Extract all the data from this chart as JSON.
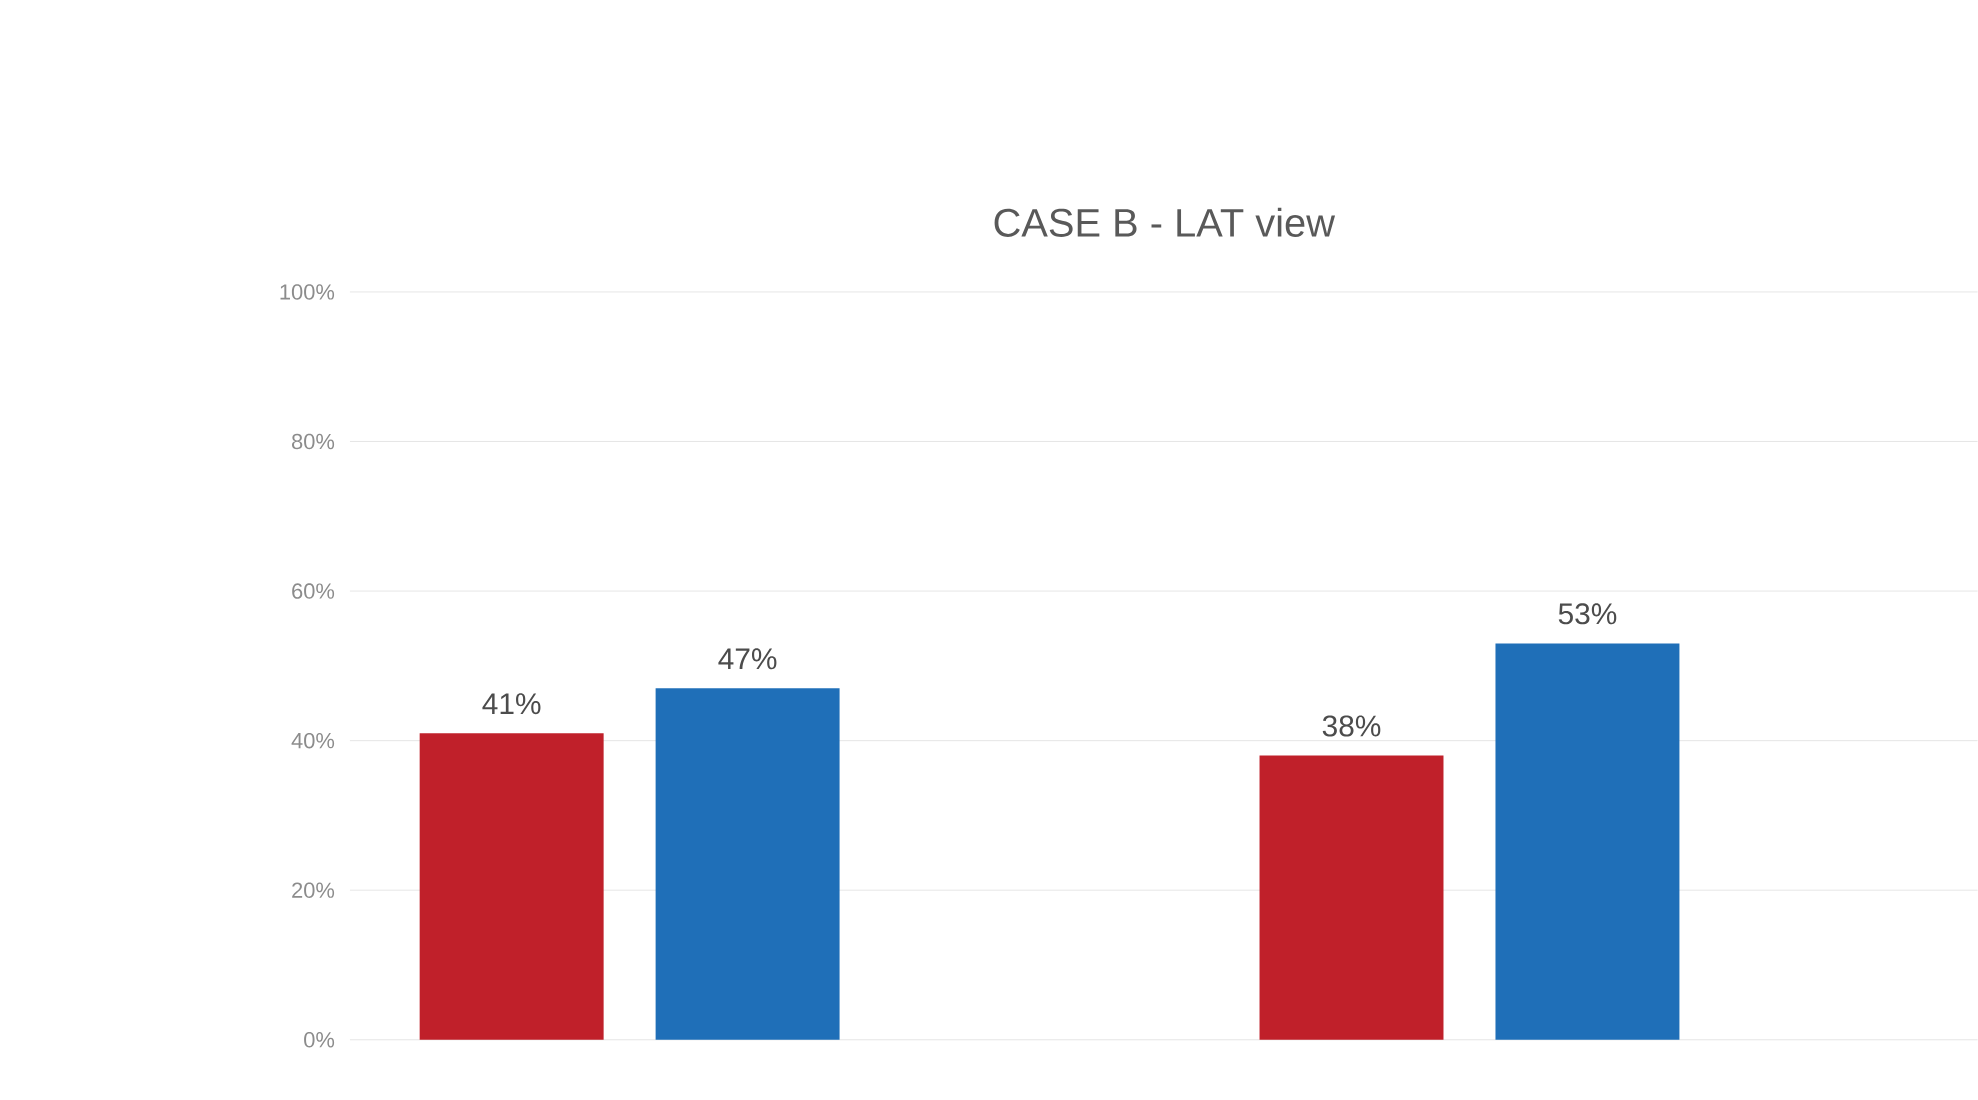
{
  "chart_data": {
    "type": "bar",
    "title": "CASE B - LAT view",
    "categories": [
      null,
      null
    ],
    "series": [
      {
        "color": "#c0202a",
        "values": [
          41,
          38
        ],
        "value_labels": [
          "41%",
          "38%"
        ]
      },
      {
        "color": "#1f6fb8",
        "values": [
          47,
          53
        ],
        "value_labels": [
          "47%",
          "53%"
        ]
      }
    ],
    "ylim": [
      0,
      100
    ],
    "yticks": [
      {
        "value": 0,
        "label": "0%"
      },
      {
        "value": 20,
        "label": "20%"
      },
      {
        "value": 40,
        "label": "40%"
      },
      {
        "value": 60,
        "label": "60%"
      },
      {
        "value": 80,
        "label": "80%"
      },
      {
        "value": 100,
        "label": "100%"
      }
    ],
    "grid": "y",
    "tick_labels": "y"
  }
}
